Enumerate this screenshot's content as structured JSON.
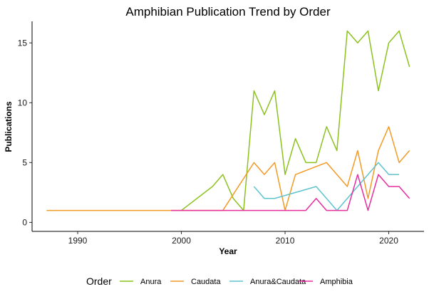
{
  "chart_data": {
    "type": "line",
    "title": "Amphibian Publication Trend by Order",
    "xlabel": "Year",
    "ylabel": "Publications",
    "xlim": [
      1985.6,
      2023.4
    ],
    "ylim": [
      -0.75,
      16.8
    ],
    "xticks": [
      1990,
      2000,
      2010,
      2020
    ],
    "yticks": [
      0,
      5,
      10,
      15
    ],
    "grid": false,
    "legend": {
      "title": "Order",
      "position": "bottom"
    },
    "series": [
      {
        "name": "Anura",
        "color": "#8cc21f",
        "x": [
          2000,
          2003,
          2004,
          2005,
          2006,
          2007,
          2008,
          2009,
          2010,
          2011,
          2012,
          2013,
          2014,
          2015,
          2016,
          2017,
          2018,
          2019,
          2020,
          2021,
          2022
        ],
        "y": [
          1,
          3,
          4,
          2,
          1,
          11,
          9,
          11,
          4,
          7,
          5,
          5,
          8,
          6,
          16,
          15,
          16,
          11,
          15,
          16,
          13
        ]
      },
      {
        "name": "Caudata",
        "color": "#f29a26",
        "x": [
          1987,
          2004,
          2007,
          2008,
          2009,
          2010,
          2011,
          2014,
          2016,
          2017,
          2018,
          2019,
          2020,
          2021,
          2022
        ],
        "y": [
          1,
          1,
          5,
          4,
          5,
          1,
          4,
          5,
          3,
          6,
          2,
          6,
          8,
          5,
          6
        ]
      },
      {
        "name": "Anura&Caudata",
        "color": "#5ec4cc",
        "x": [
          2007,
          2008,
          2009,
          2013,
          2015,
          2019,
          2020,
          2021
        ],
        "y": [
          3,
          2,
          2,
          3,
          1,
          5,
          4,
          4
        ]
      },
      {
        "name": "Amphibia",
        "color": "#e62e9e",
        "x": [
          1999,
          2012,
          2013,
          2014,
          2016,
          2017,
          2018,
          2019,
          2020,
          2021,
          2022
        ],
        "y": [
          1,
          1,
          2,
          1,
          1,
          4,
          1,
          4,
          3,
          3,
          2
        ]
      }
    ]
  }
}
